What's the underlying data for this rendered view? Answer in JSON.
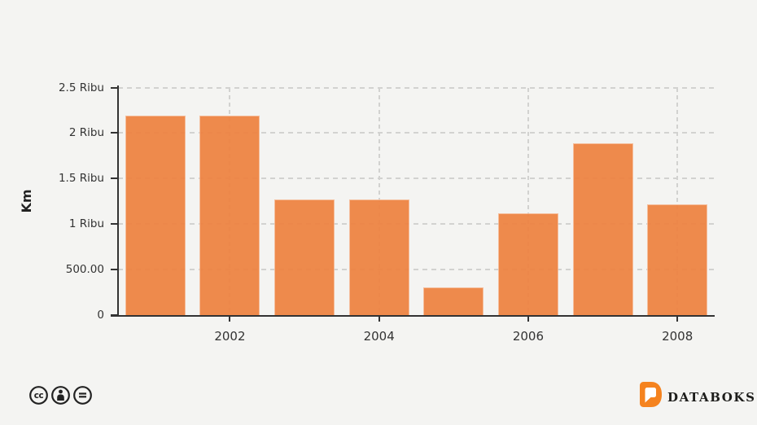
{
  "chart_data": {
    "type": "bar",
    "title": "",
    "xlabel": "",
    "ylabel": "Km",
    "categories": [
      "2001",
      "2002",
      "2003",
      "2004",
      "2005",
      "2006",
      "2007",
      "2008"
    ],
    "values": [
      2190,
      2190,
      1270,
      1270,
      300,
      1115,
      1885,
      1210
    ],
    "ylim": [
      0,
      2500
    ],
    "yticks": [
      {
        "value": 0,
        "label": "0"
      },
      {
        "value": 500,
        "label": "500.00"
      },
      {
        "value": 1000,
        "label": "1 Ribu"
      },
      {
        "value": 1500,
        "label": "1.5 Ribu"
      },
      {
        "value": 2000,
        "label": "2 Ribu"
      },
      {
        "value": 2500,
        "label": "2.5 Ribu"
      }
    ],
    "xticks": [
      "2002",
      "2004",
      "2006",
      "2008"
    ],
    "grid": "dashed",
    "legend": "none"
  },
  "footer": {
    "license_icons": [
      "cc-icon",
      "cc-by-icon",
      "cc-nd-icon"
    ],
    "brand": {
      "name": "DATABOKS"
    }
  },
  "colors": {
    "background": "#f4f4f2",
    "bar": "#ee8240",
    "grid": "#d2d2d0",
    "axis": "#333333",
    "label": "#333333",
    "brand_orange": "#f5831f",
    "brand_text": "#1d1d1b",
    "icon": "#222222"
  }
}
